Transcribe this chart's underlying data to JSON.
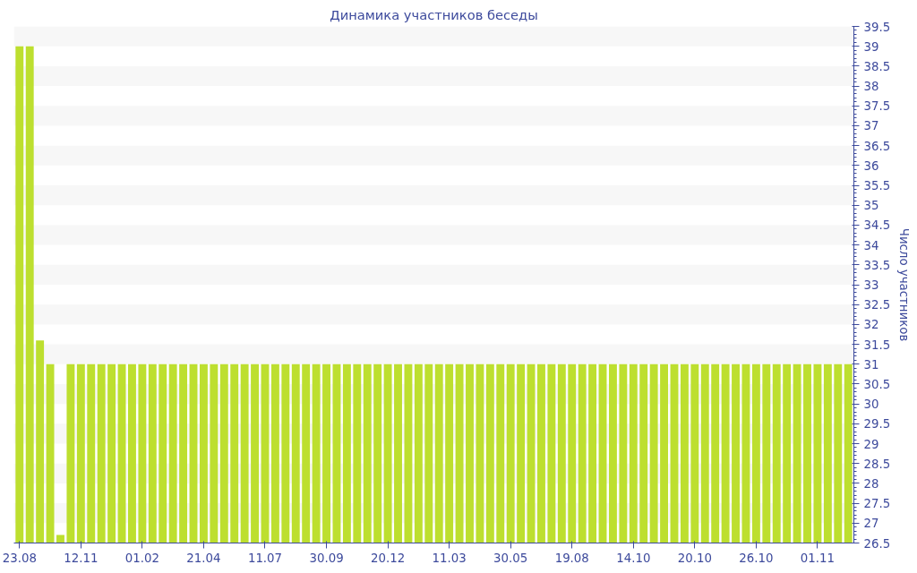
{
  "chart_data": {
    "type": "bar",
    "title": "Динамика участников беседы",
    "ylabel": "Число участников",
    "categories": [
      "23.08",
      null,
      null,
      null,
      null,
      null,
      "12.11",
      null,
      null,
      null,
      null,
      null,
      "01.02",
      null,
      null,
      null,
      null,
      null,
      "21.04",
      null,
      null,
      null,
      null,
      null,
      "11.07",
      null,
      null,
      null,
      null,
      null,
      "30.09",
      null,
      null,
      null,
      null,
      null,
      "20.12",
      null,
      null,
      null,
      null,
      null,
      "11.03",
      null,
      null,
      null,
      null,
      null,
      "30.05",
      null,
      null,
      null,
      null,
      null,
      "19.08",
      null,
      null,
      null,
      null,
      null,
      "14.10",
      null,
      null,
      null,
      null,
      null,
      "20.10",
      null,
      null,
      null,
      null,
      null,
      "26.10",
      null,
      null,
      null,
      null,
      null,
      "01.11",
      null,
      null,
      null
    ],
    "values": [
      39,
      39,
      31.6,
      31,
      26.7,
      31,
      31,
      31,
      31,
      31,
      31,
      31,
      31,
      31,
      31,
      31,
      31,
      31,
      31,
      31,
      31,
      31,
      31,
      31,
      31,
      31,
      31,
      31,
      31,
      31,
      31,
      31,
      31,
      31,
      31,
      31,
      31,
      31,
      31,
      31,
      31,
      31,
      31,
      31,
      31,
      31,
      31,
      31,
      31,
      31,
      31,
      31,
      31,
      31,
      31,
      31,
      31,
      31,
      31,
      31,
      31,
      31,
      31,
      31,
      31,
      31,
      31,
      31,
      31,
      31,
      31,
      31,
      31,
      31,
      31,
      31,
      31,
      31,
      31,
      31,
      31,
      31
    ],
    "color": "#bddf2f",
    "ylim": [
      26.5,
      39.5
    ],
    "yticks": [
      26.5,
      27,
      27.5,
      28,
      28.5,
      29,
      29.5,
      30,
      30.5,
      31,
      31.5,
      32,
      32.5,
      33,
      33.5,
      34,
      34.5,
      35,
      35.5,
      36,
      36.5,
      37,
      37.5,
      38,
      38.5,
      39,
      39.5
    ]
  }
}
